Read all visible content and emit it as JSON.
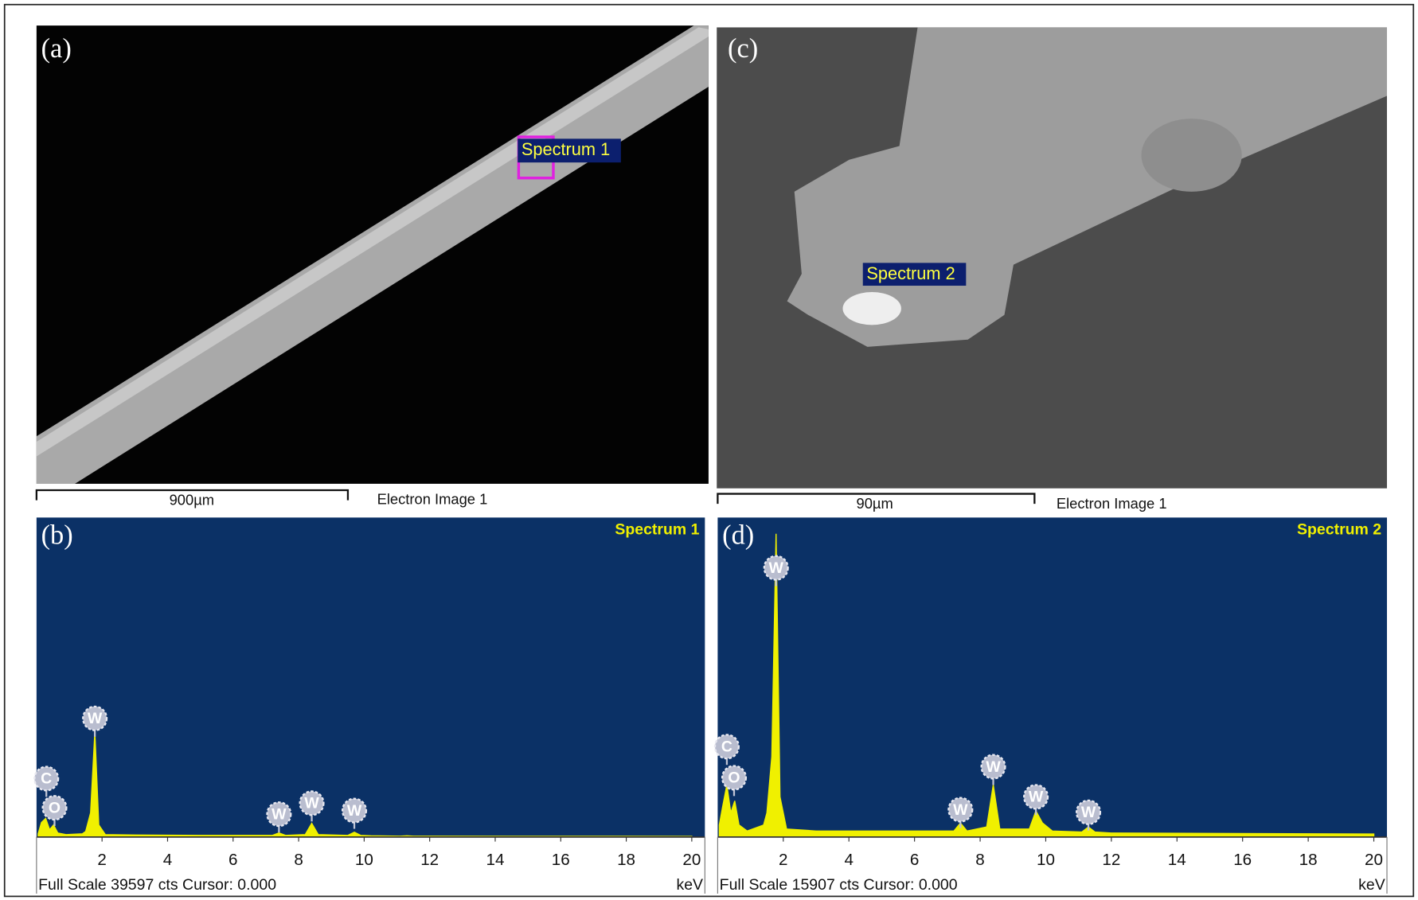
{
  "panels": [
    {
      "label": "(a)",
      "scale_bar": "900µm",
      "image_label": "Electron Image 1",
      "spectrum_tag": "Spectrum 1"
    },
    {
      "label": "(c)",
      "scale_bar": "90µm",
      "image_label": "Electron Image 1",
      "spectrum_tag": "Spectrum 2"
    }
  ],
  "chart_data": [
    {
      "type": "area",
      "panel_label": "(b)",
      "title": "Spectrum 1",
      "footer": "Full Scale 39597 cts Cursor: 0.000",
      "x_unit": "keV",
      "x": [
        0.05,
        0.15,
        0.28,
        0.4,
        0.52,
        0.65,
        0.9,
        1.4,
        1.5,
        1.65,
        1.78,
        1.9,
        2.1,
        3,
        5,
        7.2,
        7.4,
        7.6,
        8.2,
        8.4,
        8.6,
        9.5,
        9.7,
        9.9,
        10.2,
        11.1,
        11.3,
        11.5,
        12,
        20
      ],
      "values": [
        400,
        1800,
        2300,
        900,
        1500,
        500,
        300,
        400,
        700,
        3000,
        13000,
        1500,
        300,
        250,
        200,
        200,
        500,
        200,
        300,
        1700,
        300,
        200,
        600,
        200,
        150,
        100,
        150,
        100,
        100,
        80
      ],
      "color": "#f0f000",
      "xlim": [
        0,
        20.4
      ],
      "ylim": [
        0,
        39597
      ],
      "xticks": [
        2,
        4,
        6,
        8,
        10,
        12,
        14,
        16,
        18,
        20
      ],
      "peak_labels": [
        {
          "label": "C",
          "x": 0.3,
          "y": 7240
        },
        {
          "label": "O",
          "x": 0.55,
          "y": 3620
        },
        {
          "label": "W",
          "x": 1.78,
          "y": 14700
        },
        {
          "label": "W",
          "x": 7.4,
          "y": 2830
        },
        {
          "label": "W",
          "x": 8.4,
          "y": 4190
        },
        {
          "label": "W",
          "x": 9.7,
          "y": 3280
        }
      ]
    },
    {
      "type": "area",
      "panel_label": "(d)",
      "title": "Spectrum 2",
      "footer": "Full Scale 15907 cts Cursor: 0.000",
      "x_unit": "keV",
      "x": [
        0.05,
        0.15,
        0.28,
        0.4,
        0.52,
        0.65,
        0.9,
        1.4,
        1.5,
        1.65,
        1.78,
        1.9,
        2.1,
        3,
        5,
        7.2,
        7.4,
        7.6,
        8.2,
        8.4,
        8.6,
        9.5,
        9.7,
        9.9,
        10.2,
        11.1,
        11.3,
        11.5,
        12,
        20
      ],
      "values": [
        600,
        1500,
        2600,
        1200,
        1800,
        600,
        300,
        600,
        1200,
        4000,
        15100,
        2000,
        400,
        300,
        300,
        300,
        700,
        300,
        500,
        2600,
        400,
        400,
        1300,
        700,
        300,
        250,
        500,
        250,
        200,
        150
      ],
      "color": "#f0f000",
      "xlim": [
        0,
        20.4
      ],
      "ylim": [
        0,
        15907
      ],
      "xticks": [
        2,
        4,
        6,
        8,
        10,
        12,
        14,
        16,
        18,
        20
      ],
      "peak_labels": [
        {
          "label": "C",
          "x": 0.28,
          "y": 4500
        },
        {
          "label": "O",
          "x": 0.5,
          "y": 2950
        },
        {
          "label": "W",
          "x": 1.78,
          "y": 13400
        },
        {
          "label": "W",
          "x": 7.4,
          "y": 1360
        },
        {
          "label": "W",
          "x": 8.4,
          "y": 3500
        },
        {
          "label": "W",
          "x": 9.7,
          "y": 2000
        },
        {
          "label": "W",
          "x": 11.3,
          "y": 1230
        }
      ]
    }
  ]
}
